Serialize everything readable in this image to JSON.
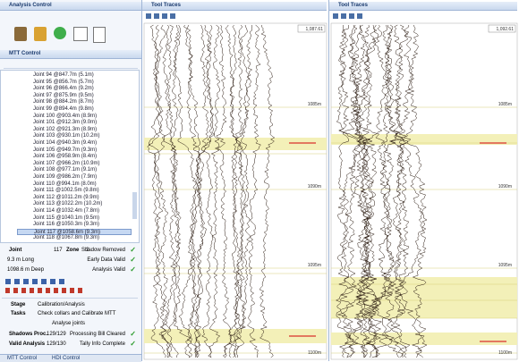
{
  "analysis_control": {
    "title": "Analysis Control"
  },
  "mtt_control": {
    "title": "MTT Control",
    "joints": [
      "Joint 94 @847.7m (5.1m)",
      "Joint 95 @856.7m (5.7m)",
      "Joint 96 @866.4m (9.2m)",
      "Joint 97 @875.9m (9.5m)",
      "Joint 98 @884.2m (8.7m)",
      "Joint 99 @894.4m (9.8m)",
      "Joint 100 @903.4m (8.9m)",
      "Joint 101 @912.3m (9.0m)",
      "Joint 102 @921.3m (8.9m)",
      "Joint 103 @930.1m (10.2m)",
      "Joint 104 @940.3m (9.4m)",
      "Joint 105 @949.7m (9.3m)",
      "Joint 106 @958.9m (8.4m)",
      "Joint 107 @966.2m (10.9m)",
      "Joint 108 @977.1m (9.1m)",
      "Joint 109 @986.2m (7.9m)",
      "Joint 110 @994.1m (8.0m)",
      "Joint 111 @1002.5m (9.8m)",
      "Joint 112 @1011.2m (9.9m)",
      "Joint 113 @1022.2m (10.2m)",
      "Joint 114 @1032.4m (7.8m)",
      "Joint 115 @1040.1m (9.5m)",
      "Joint 116 @1050.3m (9.3m)",
      "Joint 117 @1058.6m (9.3m)",
      "Joint 118 @1067.8m (9.3m)"
    ]
  },
  "joint_info": {
    "joint_label": "Joint",
    "joint_value": "117",
    "zone_label": "Zone",
    "zone_value": "2",
    "length": "9.3 m Long",
    "depth": "1098.6 m Deep",
    "checks": [
      "Shadow Removed",
      "Early Data Valid",
      "Analysis Valid"
    ]
  },
  "status": {
    "stage_label": "Stage",
    "stage": "Calibration/Analysis",
    "tasks_label": "Tasks",
    "tasks": [
      "Check collars and Calibrate MTT",
      "Analyse joints"
    ],
    "shadows_label": "Shadows Proc.",
    "shadows": "129/129",
    "shadows_check": "Processing Bill Cleared",
    "valid_label": "Valid Analysis",
    "valid": "129/130",
    "valid_check": "Tally Info Complete"
  },
  "tabs": [
    "MTT Control",
    "HDI Control"
  ],
  "tool_traces": [
    {
      "title": "Tool Traces",
      "readout": "1,087.61",
      "depths": [
        "1085m",
        "1090m",
        "1095m",
        "1100m"
      ]
    },
    {
      "title": "Tool Traces",
      "readout": "1,092.61",
      "depths": [
        "1085m",
        "1090m",
        "1095m",
        "1100m"
      ]
    }
  ]
}
